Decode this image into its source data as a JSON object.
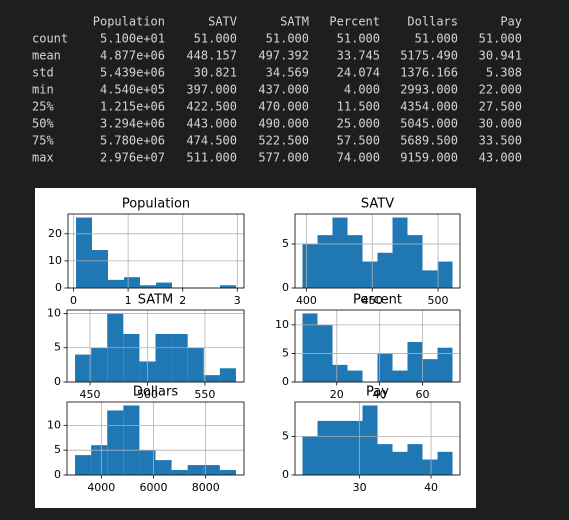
{
  "table": {
    "columns": [
      "Population",
      "SATV",
      "SATM",
      "Percent",
      "Dollars",
      "Pay"
    ],
    "index": [
      "count",
      "mean",
      "std",
      "min",
      "25%",
      "50%",
      "75%",
      "max"
    ],
    "rows": [
      [
        "5.100e+01",
        "51.000",
        "51.000",
        "51.000",
        "51.000",
        "51.000"
      ],
      [
        "4.877e+06",
        "448.157",
        "497.392",
        "33.745",
        "5175.490",
        "30.941"
      ],
      [
        "5.439e+06",
        "30.821",
        "34.569",
        "24.074",
        "1376.166",
        "5.308"
      ],
      [
        "4.540e+05",
        "397.000",
        "437.000",
        "4.000",
        "2993.000",
        "22.000"
      ],
      [
        "1.215e+06",
        "422.500",
        "470.000",
        "11.500",
        "4354.000",
        "27.500"
      ],
      [
        "3.294e+06",
        "443.000",
        "490.000",
        "25.000",
        "5045.000",
        "30.000"
      ],
      [
        "5.780e+06",
        "474.500",
        "522.500",
        "57.500",
        "5689.500",
        "33.500"
      ],
      [
        "2.976e+07",
        "511.000",
        "577.000",
        "74.000",
        "9159.000",
        "43.000"
      ]
    ]
  },
  "chart_data": [
    {
      "type": "histogram",
      "title": "Population",
      "color": "#1f77b4",
      "grid": true,
      "bins": [
        0.0454,
        0.3385,
        0.6316,
        0.9246,
        1.2177,
        1.5108,
        1.8039,
        2.097,
        2.39,
        2.6831,
        2.976
      ],
      "counts": [
        26,
        14,
        3,
        4,
        1,
        2,
        0,
        0,
        0,
        1
      ],
      "xlim": [
        -0.101,
        3.123
      ],
      "ylim": [
        0,
        27.3
      ],
      "xticks": [
        0,
        1,
        2,
        3
      ],
      "yticks": [
        0,
        10,
        20
      ]
    },
    {
      "type": "histogram",
      "title": "SATV",
      "color": "#1f77b4",
      "grid": true,
      "bins": [
        397,
        408.4,
        419.8,
        431.2,
        442.6,
        454,
        465.4,
        476.8,
        488.2,
        499.6,
        511
      ],
      "counts": [
        5,
        6,
        8,
        6,
        3,
        4,
        8,
        6,
        2,
        3
      ],
      "xlim": [
        391.3,
        516.7
      ],
      "ylim": [
        0,
        8.4
      ],
      "xticks": [
        400,
        450,
        500
      ],
      "yticks": [
        0,
        5
      ]
    },
    {
      "type": "histogram",
      "title": "SATM",
      "color": "#1f77b4",
      "grid": true,
      "bins": [
        437,
        451,
        465,
        479,
        493,
        507,
        521,
        535,
        549,
        563,
        577
      ],
      "counts": [
        4,
        5,
        10,
        7,
        3,
        7,
        7,
        5,
        1,
        2
      ],
      "xlim": [
        430,
        584
      ],
      "ylim": [
        0,
        10.5
      ],
      "xticks": [
        450,
        500,
        550
      ],
      "yticks": [
        0,
        5,
        10
      ]
    },
    {
      "type": "histogram",
      "title": "Percent",
      "color": "#1f77b4",
      "grid": true,
      "bins": [
        4,
        11,
        18,
        25,
        32,
        39,
        46,
        53,
        60,
        67,
        74
      ],
      "counts": [
        12,
        10,
        3,
        2,
        0,
        5,
        2,
        7,
        4,
        6
      ],
      "xlim": [
        0.5,
        77.5
      ],
      "ylim": [
        0,
        12.6
      ],
      "xticks": [
        20,
        40,
        60
      ],
      "yticks": [
        0,
        5,
        10
      ]
    },
    {
      "type": "histogram",
      "title": "Dollars",
      "color": "#1f77b4",
      "grid": true,
      "bins": [
        2993,
        3609.6,
        4226.2,
        4842.8,
        5459.4,
        6076,
        6692.6,
        7309.2,
        7925.8,
        8542.4,
        9159
      ],
      "counts": [
        4,
        6,
        13,
        14,
        5,
        3,
        1,
        2,
        2,
        1
      ],
      "xlim": [
        2684.7,
        9467.3
      ],
      "ylim": [
        0,
        14.7
      ],
      "xticks": [
        4000,
        6000,
        8000
      ],
      "yticks": [
        0,
        5,
        10
      ]
    },
    {
      "type": "histogram",
      "title": "Pay",
      "color": "#1f77b4",
      "grid": true,
      "bins": [
        22,
        24.1,
        26.2,
        28.3,
        30.4,
        32.5,
        34.6,
        36.7,
        38.8,
        40.9,
        43
      ],
      "counts": [
        5,
        7,
        7,
        7,
        9,
        4,
        3,
        4,
        2,
        3
      ],
      "xlim": [
        20.95,
        44.05
      ],
      "ylim": [
        0,
        9.45
      ],
      "xticks": [
        30,
        40
      ],
      "yticks": [
        0,
        5
      ]
    }
  ]
}
